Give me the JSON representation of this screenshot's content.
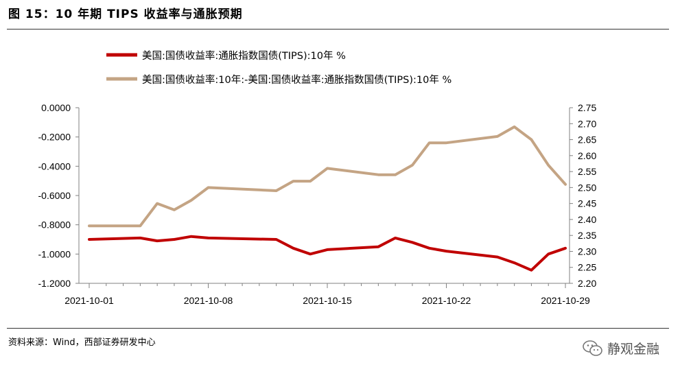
{
  "header": {
    "title": "图 15：10 年期 TIPS 收益率与通胀预期"
  },
  "footer": {
    "source": "资料来源：Wind，西部证券研发中心"
  },
  "watermark": {
    "text": "静观金融",
    "icon": "wechat-icon"
  },
  "colors": {
    "series1": "#C00000",
    "series2": "#C4A484",
    "axis": "#808080"
  },
  "chart_data": {
    "type": "line",
    "x_ticks": [
      "2021-10-01",
      "2021-10-08",
      "2021-10-15",
      "2021-10-22",
      "2021-10-29"
    ],
    "left_axis": {
      "ylim": [
        -1.2,
        0.0
      ],
      "ticks": [
        0.0,
        -0.2,
        -0.4,
        -0.6,
        -0.8,
        -1.0,
        -1.2
      ],
      "tick_labels": [
        "0.0000",
        "-0.2000",
        "-0.4000",
        "-0.6000",
        "-0.8000",
        "-1.0000",
        "-1.2000"
      ]
    },
    "right_axis": {
      "ylim": [
        2.2,
        2.75
      ],
      "ticks": [
        2.2,
        2.25,
        2.3,
        2.35,
        2.4,
        2.45,
        2.5,
        2.55,
        2.6,
        2.65,
        2.7,
        2.75
      ],
      "tick_labels": [
        "2.20",
        "2.25",
        "2.30",
        "2.35",
        "2.40",
        "2.45",
        "2.50",
        "2.55",
        "2.60",
        "2.65",
        "2.70",
        "2.75"
      ]
    },
    "series": [
      {
        "name": "美国:国债收益率:通胀指数国债(TIPS):10年 %",
        "axis": "left",
        "color": "#C00000",
        "points": [
          [
            "2021-10-01",
            -0.9
          ],
          [
            "2021-10-04",
            -0.89
          ],
          [
            "2021-10-05",
            -0.91
          ],
          [
            "2021-10-06",
            -0.9
          ],
          [
            "2021-10-07",
            -0.88
          ],
          [
            "2021-10-08",
            -0.89
          ],
          [
            "2021-10-12",
            -0.9
          ],
          [
            "2021-10-13",
            -0.96
          ],
          [
            "2021-10-14",
            -1.0
          ],
          [
            "2021-10-15",
            -0.97
          ],
          [
            "2021-10-18",
            -0.95
          ],
          [
            "2021-10-19",
            -0.89
          ],
          [
            "2021-10-20",
            -0.92
          ],
          [
            "2021-10-21",
            -0.96
          ],
          [
            "2021-10-22",
            -0.98
          ],
          [
            "2021-10-25",
            -1.02
          ],
          [
            "2021-10-26",
            -1.06
          ],
          [
            "2021-10-27",
            -1.11
          ],
          [
            "2021-10-28",
            -1.0
          ],
          [
            "2021-10-29",
            -0.96
          ]
        ]
      },
      {
        "name": "美国:国债收益率:10年:-美国:国债收益率:通胀指数国债(TIPS):10年 %",
        "axis": "right",
        "color": "#C4A484",
        "points": [
          [
            "2021-10-01",
            2.38
          ],
          [
            "2021-10-04",
            2.38
          ],
          [
            "2021-10-05",
            2.45
          ],
          [
            "2021-10-06",
            2.43
          ],
          [
            "2021-10-07",
            2.46
          ],
          [
            "2021-10-08",
            2.5
          ],
          [
            "2021-10-12",
            2.49
          ],
          [
            "2021-10-13",
            2.52
          ],
          [
            "2021-10-14",
            2.52
          ],
          [
            "2021-10-15",
            2.56
          ],
          [
            "2021-10-18",
            2.54
          ],
          [
            "2021-10-19",
            2.54
          ],
          [
            "2021-10-20",
            2.57
          ],
          [
            "2021-10-21",
            2.64
          ],
          [
            "2021-10-22",
            2.64
          ],
          [
            "2021-10-25",
            2.66
          ],
          [
            "2021-10-26",
            2.69
          ],
          [
            "2021-10-27",
            2.65
          ],
          [
            "2021-10-28",
            2.57
          ],
          [
            "2021-10-29",
            2.51
          ]
        ]
      }
    ],
    "legend_position": "top-left",
    "grid": false
  }
}
